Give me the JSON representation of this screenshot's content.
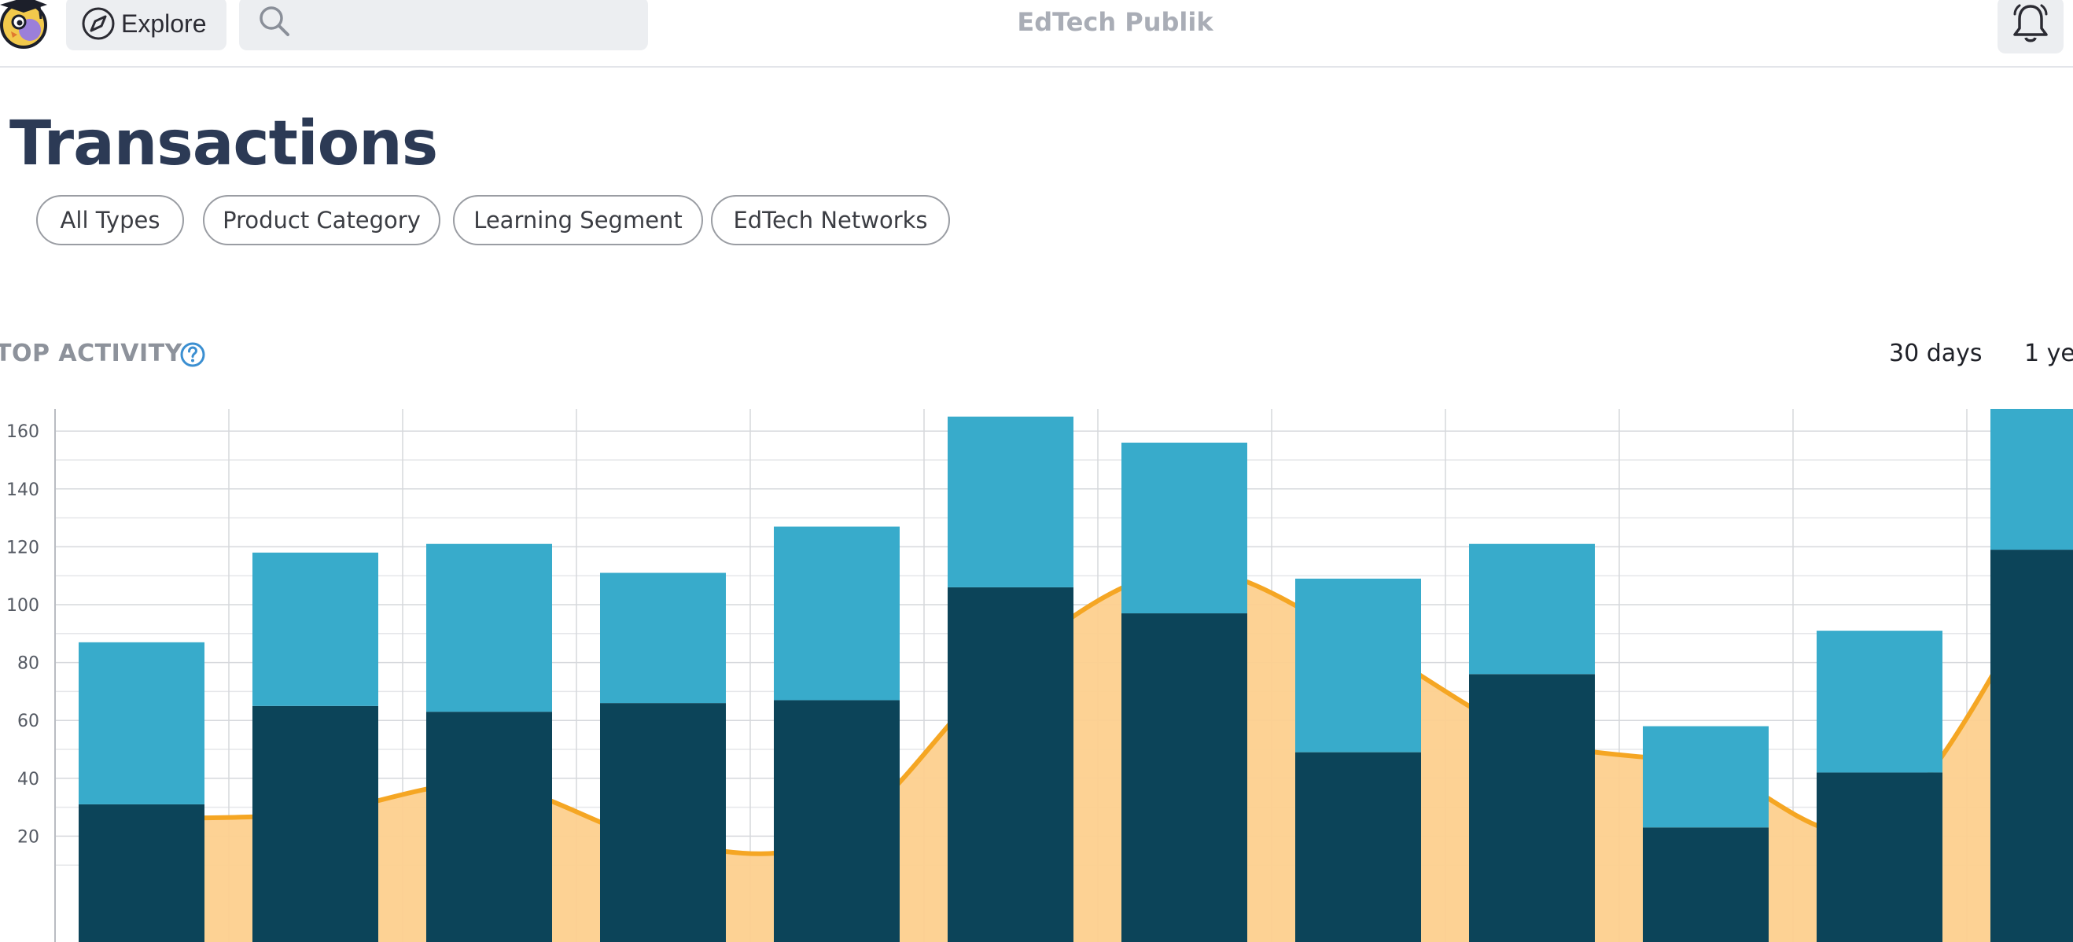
{
  "header": {
    "explore_label": "Explore",
    "search_placeholder": "",
    "brand": "EdTech Publik",
    "icons": {
      "logo": "owl-graduate-logo",
      "explore": "compass-icon",
      "search": "search-icon",
      "bell": "bell-icon"
    }
  },
  "page": {
    "title": "Transactions",
    "filters": [
      "All Types",
      "Product Category",
      "Learning Segment",
      "EdTech Networks"
    ]
  },
  "activity": {
    "title": "TOP ACTIVITY",
    "help_icon": "question-circle-icon",
    "ranges": [
      "30 days",
      "1 ye"
    ]
  },
  "colors": {
    "bar_bottom": "#0c4459",
    "bar_top": "#38abcb",
    "area_fill": "#fdd08e",
    "area_line": "#f5a623",
    "title": "#2c3a55"
  },
  "chart_data": {
    "type": "bar",
    "stacked": true,
    "grid": true,
    "ylim": [
      0,
      180
    ],
    "yticks": [
      20,
      40,
      60,
      80,
      100,
      120,
      140,
      160,
      180
    ],
    "categories": [
      "",
      "",
      "",
      "",
      "",
      "",
      "",
      "",
      "",
      "",
      "",
      ""
    ],
    "series": [
      {
        "values": [
          31,
          65,
          63,
          66,
          67,
          106,
          97,
          49,
          76,
          23,
          42,
          119
        ]
      },
      {
        "values": [
          56,
          53,
          58,
          45,
          60,
          59,
          59,
          60,
          45,
          35,
          49,
          53
        ]
      }
    ],
    "overlay": {
      "type": "area",
      "values": [
        26,
        28,
        38,
        18,
        20,
        80,
        112,
        88,
        54,
        44,
        24,
        112
      ]
    }
  }
}
